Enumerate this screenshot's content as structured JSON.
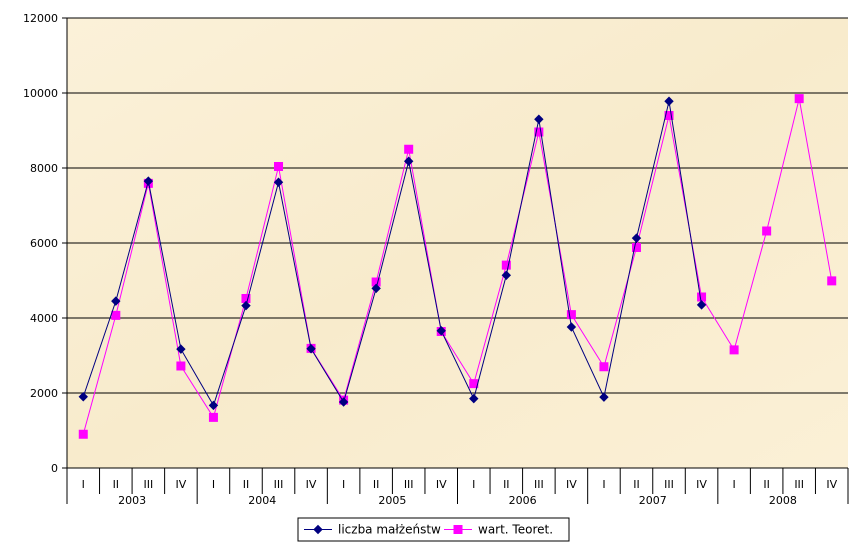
{
  "chart_data": {
    "type": "line",
    "title": "",
    "xlabel": "",
    "ylabel": "",
    "ylim": [
      0,
      12000
    ],
    "yticks": [
      0,
      2000,
      4000,
      6000,
      8000,
      10000,
      12000
    ],
    "grid": "horizontal",
    "legend_position": "bottom",
    "categories": [
      "I",
      "II",
      "III",
      "IV",
      "I",
      "II",
      "III",
      "IV",
      "I",
      "II",
      "III",
      "IV",
      "I",
      "II",
      "III",
      "IV",
      "I",
      "II",
      "III",
      "IV",
      "I",
      "II",
      "III",
      "IV"
    ],
    "years": [
      "2003",
      "2004",
      "2005",
      "2006",
      "2007",
      "2008"
    ],
    "series": [
      {
        "name": "liczba małżeństw",
        "color": "#000080",
        "marker": "diamond",
        "values": [
          1900,
          4450,
          7650,
          3170,
          1670,
          4330,
          7620,
          3180,
          1760,
          4790,
          8180,
          3660,
          1850,
          5140,
          9300,
          3760,
          1890,
          6130,
          9780,
          4350,
          null,
          null,
          null,
          null
        ]
      },
      {
        "name": "wart. Teoret.",
        "color": "#ff00ff",
        "marker": "square",
        "values": [
          900,
          4070,
          7590,
          2720,
          1350,
          4520,
          8040,
          3190,
          1810,
          4960,
          8500,
          3640,
          2250,
          5410,
          8960,
          4090,
          2700,
          5880,
          9400,
          4560,
          3150,
          6320,
          9850,
          4990
        ]
      }
    ]
  }
}
